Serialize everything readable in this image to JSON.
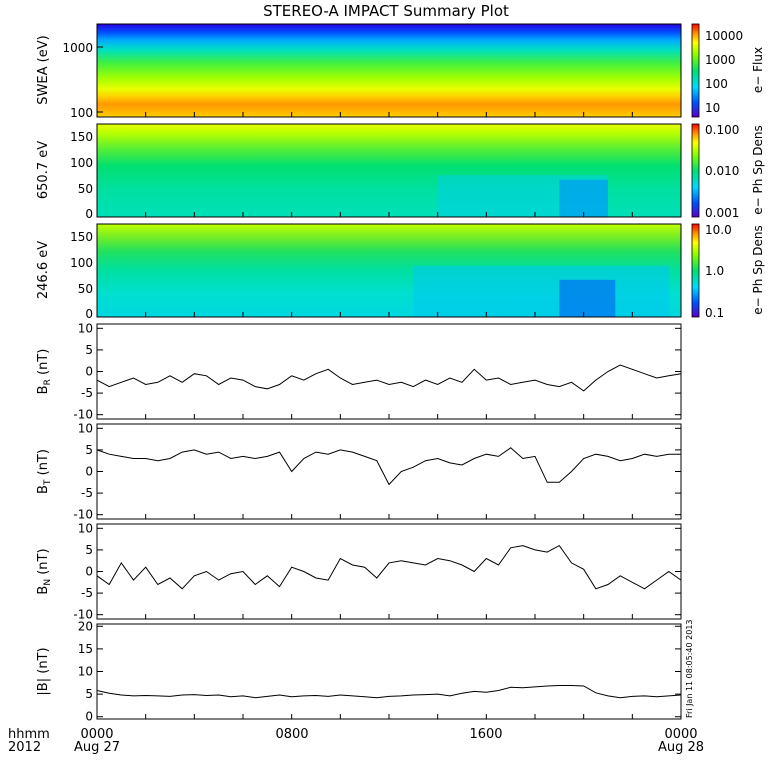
{
  "title": "STEREO-A IMPACT Summary Plot",
  "footer": {
    "row1_label": "hhmm",
    "row2_label": "2012",
    "x_ticks": [
      "0000",
      "0800",
      "1600",
      "0000"
    ],
    "date_ticks": [
      "Aug 27",
      "Aug 28"
    ]
  },
  "stamp": "Fri Jan 11 08:05:40 2013",
  "colorscale": "rainbow (blue to red)",
  "chart_data": [
    {
      "type": "heatmap",
      "ylabel": "SWEA (eV)",
      "yticks": [
        "1000",
        "100"
      ],
      "yscale": "log",
      "colorbar": {
        "label": "e− Flux",
        "ticks": [
          "10000",
          "1000",
          "100",
          "10"
        ],
        "scale": "log",
        "range": [
          4,
          30000
        ]
      },
      "description_rows": "flux high (red/orange) at low energy near 100 eV, decreasing to blue above 1500 eV; nearly uniform over the day"
    },
    {
      "type": "heatmap",
      "ylabel": "650.7 eV",
      "ylim": [
        0,
        180
      ],
      "yticks": [
        "150",
        "100",
        "50",
        "0"
      ],
      "colorbar": {
        "label": "e− Ph Sp Dens",
        "ticks": [
          "0.100",
          "0.010",
          "0.001"
        ],
        "scale": "log",
        "range": [
          0.001,
          0.12
        ]
      }
    },
    {
      "type": "heatmap",
      "ylabel": "246.6 eV",
      "ylim": [
        0,
        180
      ],
      "yticks": [
        "150",
        "100",
        "50",
        "0"
      ],
      "colorbar": {
        "label": "e− Ph Sp Dens",
        "ticks": [
          "10.0",
          "1.0",
          "0.1"
        ],
        "scale": "log",
        "range": [
          0.08,
          11
        ]
      }
    },
    {
      "type": "line",
      "ylabel": {
        "main": "B",
        "sub": "R",
        "unit": " (nT)"
      },
      "ylim": [
        -11,
        11
      ],
      "yticks": [
        10,
        5,
        0,
        -5,
        -10
      ],
      "series": [
        {
          "x": [
            0,
            0.5,
            1,
            1.5,
            2,
            2.5,
            3,
            3.5,
            4,
            4.5,
            5,
            5.5,
            6,
            6.5,
            7,
            7.5,
            8,
            8.5,
            9,
            9.5,
            10,
            10.5,
            11,
            11.5,
            12,
            12.5,
            13,
            13.5,
            14,
            14.5,
            15,
            15.5,
            16,
            16.5,
            17,
            17.5,
            18,
            18.5,
            19,
            19.5,
            20,
            20.5,
            21,
            21.5,
            22,
            22.5,
            23,
            23.5,
            24
          ],
          "values": [
            -2,
            -3.5,
            -2.5,
            -1.5,
            -3,
            -2.5,
            -1,
            -2.5,
            -0.5,
            -1,
            -3,
            -1.5,
            -2,
            -3.5,
            -4,
            -3,
            -1,
            -2,
            -0.5,
            0.5,
            -1.5,
            -3,
            -2.5,
            -2,
            -3,
            -2.5,
            -3.5,
            -2,
            -3,
            -1.5,
            -2.5,
            0.5,
            -2,
            -1.5,
            -3,
            -2.5,
            -2,
            -3,
            -3.5,
            -2.5,
            -4.5,
            -2,
            0,
            1.5,
            0.5,
            -0.5,
            -1.5,
            -1,
            -0.5
          ]
        }
      ]
    },
    {
      "type": "line",
      "ylabel": {
        "main": "B",
        "sub": "T",
        "unit": " (nT)"
      },
      "ylim": [
        -11,
        11
      ],
      "yticks": [
        10,
        5,
        0,
        -5,
        -10
      ],
      "series": [
        {
          "x": [
            0,
            0.5,
            1,
            1.5,
            2,
            2.5,
            3,
            3.5,
            4,
            4.5,
            5,
            5.5,
            6,
            6.5,
            7,
            7.5,
            8,
            8.5,
            9,
            9.5,
            10,
            10.5,
            11,
            11.5,
            12,
            12.5,
            13,
            13.5,
            14,
            14.5,
            15,
            15.5,
            16,
            16.5,
            17,
            17.5,
            18,
            18.5,
            19,
            19.5,
            20,
            20.5,
            21,
            21.5,
            22,
            22.5,
            23,
            23.5,
            24
          ],
          "values": [
            5,
            4,
            3.5,
            3,
            3,
            2.5,
            3,
            4.5,
            5,
            4,
            4.5,
            3,
            3.5,
            3,
            3.5,
            4.5,
            0,
            3,
            4.5,
            4,
            5,
            4.5,
            3.5,
            2.5,
            -3,
            0,
            1,
            2.5,
            3,
            2,
            1.5,
            3,
            4,
            3.5,
            5.5,
            3,
            3.5,
            -2.5,
            -2.5,
            0,
            3,
            4,
            3.5,
            2.5,
            3,
            4,
            3.5,
            4,
            4
          ]
        }
      ]
    },
    {
      "type": "line",
      "ylabel": {
        "main": "B",
        "sub": "N",
        "unit": " (nT)"
      },
      "ylim": [
        -11,
        11
      ],
      "yticks": [
        10,
        5,
        0,
        -5,
        -10
      ],
      "series": [
        {
          "x": [
            0,
            0.5,
            1,
            1.5,
            2,
            2.5,
            3,
            3.5,
            4,
            4.5,
            5,
            5.5,
            6,
            6.5,
            7,
            7.5,
            8,
            8.5,
            9,
            9.5,
            10,
            10.5,
            11,
            11.5,
            12,
            12.5,
            13,
            13.5,
            14,
            14.5,
            15,
            15.5,
            16,
            16.5,
            17,
            17.5,
            18,
            18.5,
            19,
            19.5,
            20,
            20.5,
            21,
            21.5,
            22,
            22.5,
            23,
            23.5,
            24
          ],
          "values": [
            -1,
            -3,
            2,
            -2,
            1,
            -3,
            -1.5,
            -4,
            -1,
            0,
            -2,
            -0.5,
            0,
            -3,
            -1,
            -3.5,
            1,
            0,
            -1.5,
            -2,
            3,
            1.5,
            1,
            -1.5,
            2,
            2.5,
            2,
            1.5,
            3,
            2.5,
            1.5,
            0,
            3,
            1.5,
            5.5,
            6,
            5,
            4.5,
            6,
            2,
            0.5,
            -4,
            -3,
            -1,
            -2.5,
            -4,
            -2,
            0,
            -2
          ]
        }
      ]
    },
    {
      "type": "line",
      "ylabel": {
        "main": "|B|",
        "sub": "",
        "unit": " (nT)"
      },
      "ylim": [
        -0.5,
        20.5
      ],
      "yticks": [
        20,
        15,
        10,
        5,
        0
      ],
      "series": [
        {
          "x": [
            0,
            0.5,
            1,
            1.5,
            2,
            2.5,
            3,
            3.5,
            4,
            4.5,
            5,
            5.5,
            6,
            6.5,
            7,
            7.5,
            8,
            8.5,
            9,
            9.5,
            10,
            10.5,
            11,
            11.5,
            12,
            12.5,
            13,
            13.5,
            14,
            14.5,
            15,
            15.5,
            16,
            16.5,
            17,
            17.5,
            18,
            18.5,
            19,
            19.5,
            20,
            20.5,
            21,
            21.5,
            22,
            22.5,
            23,
            23.5,
            24
          ],
          "values": [
            5.8,
            5.2,
            4.8,
            4.6,
            4.7,
            4.6,
            4.5,
            4.8,
            4.9,
            4.7,
            4.8,
            4.4,
            4.6,
            4.2,
            4.5,
            4.8,
            4.4,
            4.6,
            4.7,
            4.5,
            4.8,
            4.6,
            4.4,
            4.2,
            4.5,
            4.6,
            4.8,
            4.9,
            5,
            4.6,
            5.2,
            5.6,
            5.4,
            5.8,
            6.5,
            6.4,
            6.6,
            6.8,
            6.9,
            6.9,
            6.8,
            5.3,
            4.6,
            4.2,
            4.5,
            4.6,
            4.4,
            4.6,
            4.8
          ]
        }
      ]
    }
  ]
}
